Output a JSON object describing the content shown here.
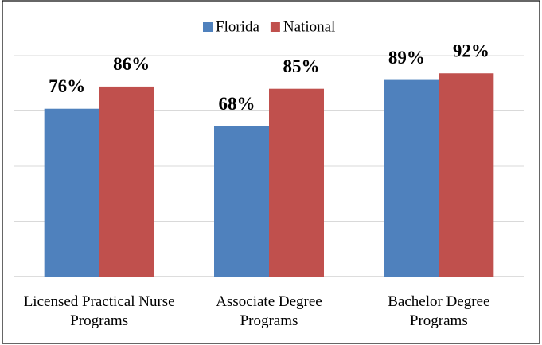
{
  "chart_data": {
    "type": "bar",
    "categories": [
      "Licensed Practical Nurse Programs",
      "Associate Degree Programs",
      "Bachelor Degree Programs"
    ],
    "series": [
      {
        "name": "Florida",
        "color": "#4f81bd",
        "values": [
          76,
          68,
          89
        ],
        "value_labels": [
          "76%",
          "68%",
          "89%"
        ]
      },
      {
        "name": "National",
        "color": "#c0504d",
        "values": [
          86,
          85,
          92
        ],
        "value_labels": [
          "86%",
          "85%",
          "92%"
        ]
      }
    ],
    "ylim": [
      0,
      100
    ],
    "yticks": [
      0,
      25,
      50,
      75,
      100
    ],
    "grid": true,
    "legend": "top"
  }
}
